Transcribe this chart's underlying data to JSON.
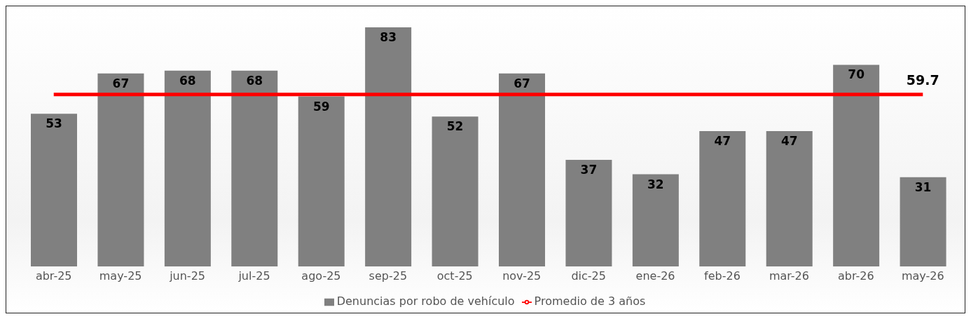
{
  "chart_data": {
    "type": "bar",
    "categories": [
      "abr-25",
      "may-25",
      "jun-25",
      "jul-25",
      "ago-25",
      "sep-25",
      "oct-25",
      "nov-25",
      "dic-25",
      "ene-26",
      "feb-26",
      "mar-26",
      "abr-26",
      "may-26"
    ],
    "series": [
      {
        "name": "Denuncias por robo de vehículo",
        "color": "#808080",
        "values": [
          53,
          67,
          68,
          68,
          59,
          83,
          52,
          67,
          37,
          32,
          47,
          47,
          70,
          31
        ],
        "value_labels": [
          "53",
          "67",
          "68",
          "68",
          "59",
          "83",
          "52",
          "67",
          "37",
          "32",
          "47",
          "47",
          "70",
          "31"
        ]
      },
      {
        "name": "Promedio de 3 años",
        "type": "line",
        "color": "#ff0000",
        "values": [
          59.7,
          59.7,
          59.7,
          59.7,
          59.7,
          59.7,
          59.7,
          59.7,
          59.7,
          59.7,
          59.7,
          59.7,
          59.7,
          59.7
        ],
        "value_labels": [
          null,
          null,
          null,
          null,
          null,
          null,
          null,
          null,
          null,
          null,
          null,
          null,
          null,
          "59.7"
        ]
      }
    ],
    "legend": "bottom",
    "marker": "none",
    "line_style": "solid"
  }
}
